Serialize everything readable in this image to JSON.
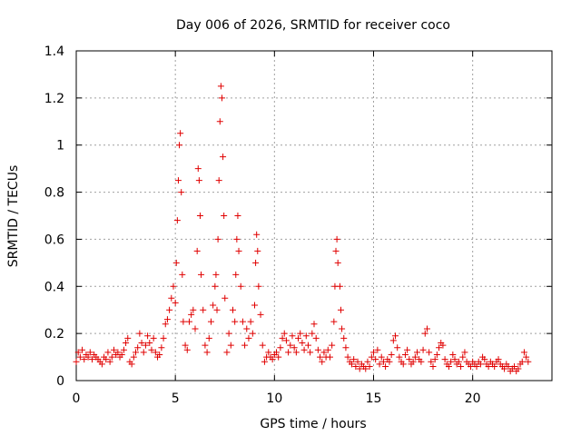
{
  "chart_data": {
    "type": "scatter",
    "title": "Day 006 of 2026, SRMTID for receiver coco",
    "xlabel": "GPS time / hours",
    "ylabel": "SRMTID / TECUs",
    "xlim": [
      0,
      24
    ],
    "ylim": [
      0,
      1.4
    ],
    "xticks": [
      0,
      5,
      10,
      15,
      20
    ],
    "yticks": [
      0,
      0.2,
      0.4,
      0.6,
      0.8,
      1,
      1.2,
      1.4
    ],
    "xtick_labels": [
      "0",
      "5",
      "10",
      "15",
      "20"
    ],
    "ytick_labels": [
      "0",
      "0.2",
      "0.4",
      "0.6",
      "0.8",
      "1",
      "1.2",
      "1.4"
    ],
    "grid": true,
    "marker": "+",
    "color": "#e00000",
    "series": [
      {
        "name": "SRMTID",
        "points": [
          [
            0.0,
            0.08
          ],
          [
            0.1,
            0.12
          ],
          [
            0.2,
            0.1
          ],
          [
            0.3,
            0.13
          ],
          [
            0.4,
            0.09
          ],
          [
            0.5,
            0.11
          ],
          [
            0.6,
            0.1
          ],
          [
            0.7,
            0.12
          ],
          [
            0.8,
            0.09
          ],
          [
            0.9,
            0.11
          ],
          [
            1.0,
            0.1
          ],
          [
            1.1,
            0.09
          ],
          [
            1.2,
            0.08
          ],
          [
            1.3,
            0.07
          ],
          [
            1.4,
            0.1
          ],
          [
            1.5,
            0.09
          ],
          [
            1.6,
            0.12
          ],
          [
            1.7,
            0.08
          ],
          [
            1.8,
            0.1
          ],
          [
            1.9,
            0.13
          ],
          [
            2.0,
            0.11
          ],
          [
            2.1,
            0.12
          ],
          [
            2.2,
            0.1
          ],
          [
            2.3,
            0.11
          ],
          [
            2.4,
            0.13
          ],
          [
            2.5,
            0.16
          ],
          [
            2.6,
            0.18
          ],
          [
            2.7,
            0.08
          ],
          [
            2.8,
            0.07
          ],
          [
            2.9,
            0.1
          ],
          [
            3.0,
            0.12
          ],
          [
            3.1,
            0.14
          ],
          [
            3.2,
            0.2
          ],
          [
            3.3,
            0.16
          ],
          [
            3.4,
            0.12
          ],
          [
            3.5,
            0.15
          ],
          [
            3.6,
            0.19
          ],
          [
            3.7,
            0.16
          ],
          [
            3.8,
            0.13
          ],
          [
            3.9,
            0.18
          ],
          [
            4.0,
            0.12
          ],
          [
            4.1,
            0.1
          ],
          [
            4.2,
            0.11
          ],
          [
            4.3,
            0.14
          ],
          [
            4.4,
            0.18
          ],
          [
            4.5,
            0.24
          ],
          [
            4.6,
            0.26
          ],
          [
            4.7,
            0.3
          ],
          [
            4.8,
            0.35
          ],
          [
            4.9,
            0.4
          ],
          [
            5.0,
            0.33
          ],
          [
            5.05,
            0.5
          ],
          [
            5.1,
            0.68
          ],
          [
            5.15,
            0.85
          ],
          [
            5.2,
            1.0
          ],
          [
            5.25,
            1.05
          ],
          [
            5.3,
            0.8
          ],
          [
            5.35,
            0.45
          ],
          [
            5.4,
            0.25
          ],
          [
            5.5,
            0.15
          ],
          [
            5.6,
            0.13
          ],
          [
            5.7,
            0.25
          ],
          [
            5.8,
            0.28
          ],
          [
            5.9,
            0.3
          ],
          [
            6.0,
            0.22
          ],
          [
            6.1,
            0.55
          ],
          [
            6.15,
            0.9
          ],
          [
            6.2,
            0.85
          ],
          [
            6.25,
            0.7
          ],
          [
            6.3,
            0.45
          ],
          [
            6.4,
            0.3
          ],
          [
            6.5,
            0.15
          ],
          [
            6.6,
            0.12
          ],
          [
            6.7,
            0.18
          ],
          [
            6.8,
            0.25
          ],
          [
            6.9,
            0.32
          ],
          [
            7.0,
            0.4
          ],
          [
            7.05,
            0.45
          ],
          [
            7.1,
            0.3
          ],
          [
            7.15,
            0.6
          ],
          [
            7.2,
            0.85
          ],
          [
            7.25,
            1.1
          ],
          [
            7.3,
            1.25
          ],
          [
            7.35,
            1.2
          ],
          [
            7.4,
            0.95
          ],
          [
            7.45,
            0.7
          ],
          [
            7.5,
            0.35
          ],
          [
            7.6,
            0.12
          ],
          [
            7.7,
            0.2
          ],
          [
            7.8,
            0.15
          ],
          [
            7.9,
            0.3
          ],
          [
            8.0,
            0.25
          ],
          [
            8.05,
            0.45
          ],
          [
            8.1,
            0.6
          ],
          [
            8.15,
            0.7
          ],
          [
            8.2,
            0.55
          ],
          [
            8.3,
            0.4
          ],
          [
            8.4,
            0.25
          ],
          [
            8.5,
            0.15
          ],
          [
            8.6,
            0.22
          ],
          [
            8.7,
            0.18
          ],
          [
            8.8,
            0.25
          ],
          [
            8.9,
            0.2
          ],
          [
            9.0,
            0.32
          ],
          [
            9.05,
            0.5
          ],
          [
            9.1,
            0.62
          ],
          [
            9.15,
            0.55
          ],
          [
            9.2,
            0.4
          ],
          [
            9.3,
            0.28
          ],
          [
            9.4,
            0.15
          ],
          [
            9.5,
            0.08
          ],
          [
            9.6,
            0.1
          ],
          [
            9.7,
            0.12
          ],
          [
            9.8,
            0.1
          ],
          [
            9.9,
            0.09
          ],
          [
            10.0,
            0.11
          ],
          [
            10.1,
            0.12
          ],
          [
            10.2,
            0.1
          ],
          [
            10.3,
            0.14
          ],
          [
            10.4,
            0.18
          ],
          [
            10.5,
            0.2
          ],
          [
            10.6,
            0.17
          ],
          [
            10.7,
            0.12
          ],
          [
            10.8,
            0.15
          ],
          [
            10.9,
            0.19
          ],
          [
            11.0,
            0.14
          ],
          [
            11.1,
            0.12
          ],
          [
            11.2,
            0.18
          ],
          [
            11.3,
            0.2
          ],
          [
            11.4,
            0.16
          ],
          [
            11.5,
            0.13
          ],
          [
            11.6,
            0.19
          ],
          [
            11.7,
            0.15
          ],
          [
            11.8,
            0.12
          ],
          [
            11.9,
            0.2
          ],
          [
            12.0,
            0.24
          ],
          [
            12.1,
            0.18
          ],
          [
            12.2,
            0.13
          ],
          [
            12.3,
            0.1
          ],
          [
            12.4,
            0.08
          ],
          [
            12.5,
            0.12
          ],
          [
            12.6,
            0.1
          ],
          [
            12.7,
            0.13
          ],
          [
            12.8,
            0.1
          ],
          [
            12.9,
            0.15
          ],
          [
            13.0,
            0.25
          ],
          [
            13.05,
            0.4
          ],
          [
            13.1,
            0.55
          ],
          [
            13.15,
            0.6
          ],
          [
            13.2,
            0.5
          ],
          [
            13.3,
            0.4
          ],
          [
            13.35,
            0.3
          ],
          [
            13.4,
            0.22
          ],
          [
            13.5,
            0.18
          ],
          [
            13.6,
            0.14
          ],
          [
            13.7,
            0.1
          ],
          [
            13.8,
            0.08
          ],
          [
            13.9,
            0.07
          ],
          [
            14.0,
            0.09
          ],
          [
            14.1,
            0.06
          ],
          [
            14.2,
            0.08
          ],
          [
            14.3,
            0.05
          ],
          [
            14.4,
            0.07
          ],
          [
            14.5,
            0.06
          ],
          [
            14.6,
            0.05
          ],
          [
            14.7,
            0.08
          ],
          [
            14.8,
            0.06
          ],
          [
            14.9,
            0.1
          ],
          [
            15.0,
            0.12
          ],
          [
            15.1,
            0.09
          ],
          [
            15.2,
            0.13
          ],
          [
            15.3,
            0.07
          ],
          [
            15.4,
            0.1
          ],
          [
            15.5,
            0.08
          ],
          [
            15.6,
            0.06
          ],
          [
            15.7,
            0.09
          ],
          [
            15.8,
            0.08
          ],
          [
            15.9,
            0.11
          ],
          [
            16.0,
            0.17
          ],
          [
            16.1,
            0.19
          ],
          [
            16.2,
            0.14
          ],
          [
            16.3,
            0.1
          ],
          [
            16.4,
            0.08
          ],
          [
            16.5,
            0.07
          ],
          [
            16.6,
            0.11
          ],
          [
            16.7,
            0.13
          ],
          [
            16.8,
            0.09
          ],
          [
            16.9,
            0.07
          ],
          [
            17.0,
            0.08
          ],
          [
            17.1,
            0.1
          ],
          [
            17.2,
            0.12
          ],
          [
            17.3,
            0.09
          ],
          [
            17.4,
            0.08
          ],
          [
            17.5,
            0.13
          ],
          [
            17.6,
            0.2
          ],
          [
            17.7,
            0.22
          ],
          [
            17.8,
            0.12
          ],
          [
            17.9,
            0.08
          ],
          [
            18.0,
            0.06
          ],
          [
            18.1,
            0.09
          ],
          [
            18.2,
            0.11
          ],
          [
            18.3,
            0.14
          ],
          [
            18.4,
            0.16
          ],
          [
            18.5,
            0.15
          ],
          [
            18.6,
            0.09
          ],
          [
            18.7,
            0.07
          ],
          [
            18.8,
            0.06
          ],
          [
            18.9,
            0.08
          ],
          [
            19.0,
            0.11
          ],
          [
            19.1,
            0.09
          ],
          [
            19.2,
            0.07
          ],
          [
            19.3,
            0.08
          ],
          [
            19.4,
            0.06
          ],
          [
            19.5,
            0.1
          ],
          [
            19.6,
            0.12
          ],
          [
            19.7,
            0.08
          ],
          [
            19.8,
            0.07
          ],
          [
            19.9,
            0.06
          ],
          [
            20.0,
            0.08
          ],
          [
            20.1,
            0.07
          ],
          [
            20.2,
            0.06
          ],
          [
            20.3,
            0.08
          ],
          [
            20.4,
            0.07
          ],
          [
            20.5,
            0.1
          ],
          [
            20.6,
            0.09
          ],
          [
            20.7,
            0.07
          ],
          [
            20.8,
            0.06
          ],
          [
            20.9,
            0.08
          ],
          [
            21.0,
            0.07
          ],
          [
            21.1,
            0.06
          ],
          [
            21.2,
            0.08
          ],
          [
            21.3,
            0.09
          ],
          [
            21.4,
            0.07
          ],
          [
            21.5,
            0.06
          ],
          [
            21.6,
            0.05
          ],
          [
            21.7,
            0.07
          ],
          [
            21.8,
            0.06
          ],
          [
            21.9,
            0.04
          ],
          [
            22.0,
            0.05
          ],
          [
            22.1,
            0.06
          ],
          [
            22.2,
            0.04
          ],
          [
            22.3,
            0.05
          ],
          [
            22.4,
            0.07
          ],
          [
            22.5,
            0.08
          ],
          [
            22.6,
            0.12
          ],
          [
            22.7,
            0.1
          ],
          [
            22.8,
            0.08
          ]
        ]
      }
    ]
  }
}
